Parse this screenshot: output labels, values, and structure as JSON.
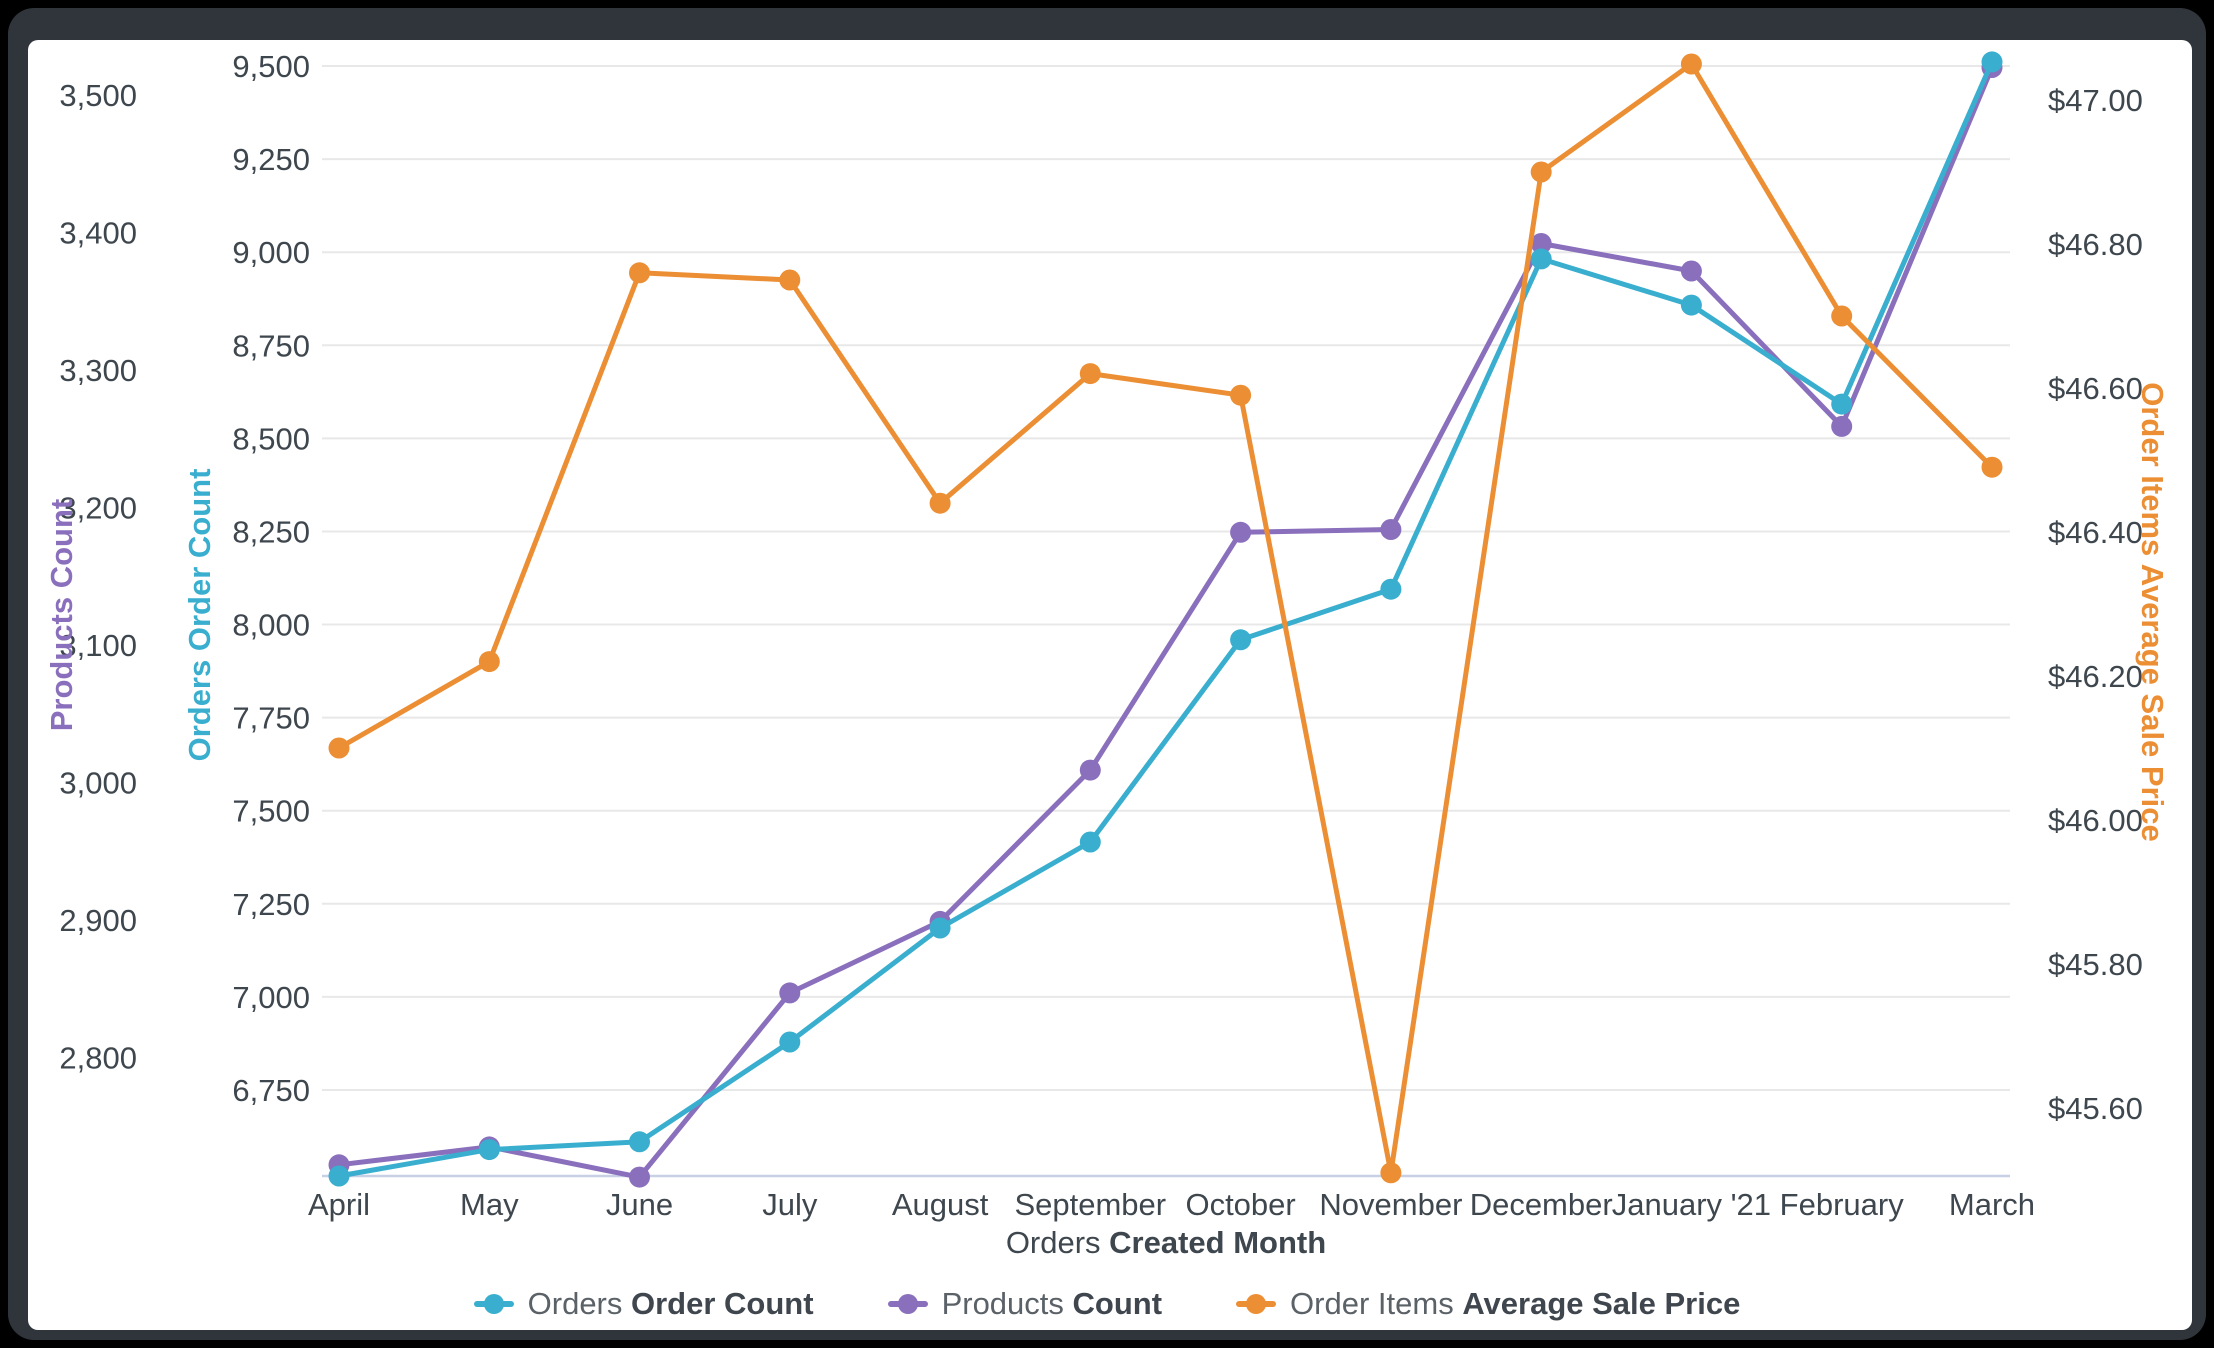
{
  "chart_data": {
    "type": "line",
    "title": "",
    "grid": true,
    "legend_position": "bottom",
    "x_axis": {
      "title_prefix": "Orders ",
      "title_bold": "Created Month",
      "categories": [
        "April",
        "May",
        "June",
        "July",
        "August",
        "September",
        "October",
        "November",
        "December",
        "January '21",
        "February",
        "March"
      ]
    },
    "y_axes": [
      {
        "id": "products",
        "title": "Products Count",
        "color": "#8a6fbc",
        "side": "left-outer",
        "ticks": [
          {
            "label": "3,500",
            "value": 3500
          },
          {
            "label": "3,400",
            "value": 3400
          },
          {
            "label": "3,300",
            "value": 3300
          },
          {
            "label": "3,200",
            "value": 3200
          },
          {
            "label": "3,100",
            "value": 3100
          },
          {
            "label": "3,000",
            "value": 3000
          },
          {
            "label": "2,900",
            "value": 2900
          },
          {
            "label": "2,800",
            "value": 2800
          }
        ]
      },
      {
        "id": "orders",
        "title": "Orders Order Count",
        "color": "#39aece",
        "side": "left-inner",
        "ticks": [
          {
            "label": "9,500",
            "value": 9500
          },
          {
            "label": "9,250",
            "value": 9250
          },
          {
            "label": "9,000",
            "value": 9000
          },
          {
            "label": "8,750",
            "value": 8750
          },
          {
            "label": "8,500",
            "value": 8500
          },
          {
            "label": "8,250",
            "value": 8250
          },
          {
            "label": "8,000",
            "value": 8000
          },
          {
            "label": "7,750",
            "value": 7750
          },
          {
            "label": "7,500",
            "value": 7500
          },
          {
            "label": "7,250",
            "value": 7250
          },
          {
            "label": "7,000",
            "value": 7000
          },
          {
            "label": "6,750",
            "value": 6750
          }
        ]
      },
      {
        "id": "price",
        "title": "Order Items Average Sale Price",
        "color": "#ec8e33",
        "side": "right",
        "ticks": [
          {
            "label": "$47.00",
            "value": 47.0
          },
          {
            "label": "$46.80",
            "value": 46.8
          },
          {
            "label": "$46.60",
            "value": 46.6
          },
          {
            "label": "$46.40",
            "value": 46.4
          },
          {
            "label": "$46.20",
            "value": 46.2
          },
          {
            "label": "$46.00",
            "value": 46.0
          },
          {
            "label": "$45.80",
            "value": 45.8
          },
          {
            "label": "$45.60",
            "value": 45.6
          }
        ]
      }
    ],
    "series": [
      {
        "id": "products-count",
        "name_prefix": "Products ",
        "name_bold": "Count",
        "axis": "products",
        "color": "#8a6fbc",
        "values": [
          2722,
          2735,
          2713,
          2847,
          2899,
          3009,
          3182,
          3184,
          3392,
          3372,
          3259,
          3520
        ]
      },
      {
        "id": "orders-order-count",
        "name_prefix": "Orders ",
        "name_bold": "Order Count",
        "axis": "orders",
        "color": "#39aece",
        "values": [
          6519,
          6590,
          6611,
          6879,
          7185,
          7416,
          7959,
          8095,
          8982,
          8858,
          8592,
          9511
        ]
      },
      {
        "id": "order-items-average-sale-price",
        "name_prefix": "Order Items ",
        "name_bold": "Average Sale Price",
        "axis": "price",
        "color": "#ec8e33",
        "values": [
          46.1,
          46.22,
          46.76,
          46.75,
          46.44,
          46.62,
          46.59,
          45.51,
          46.9,
          47.05,
          46.7,
          46.49
        ]
      }
    ],
    "legend_order": [
      "orders-order-count",
      "products-count",
      "order-items-average-sale-price"
    ]
  }
}
